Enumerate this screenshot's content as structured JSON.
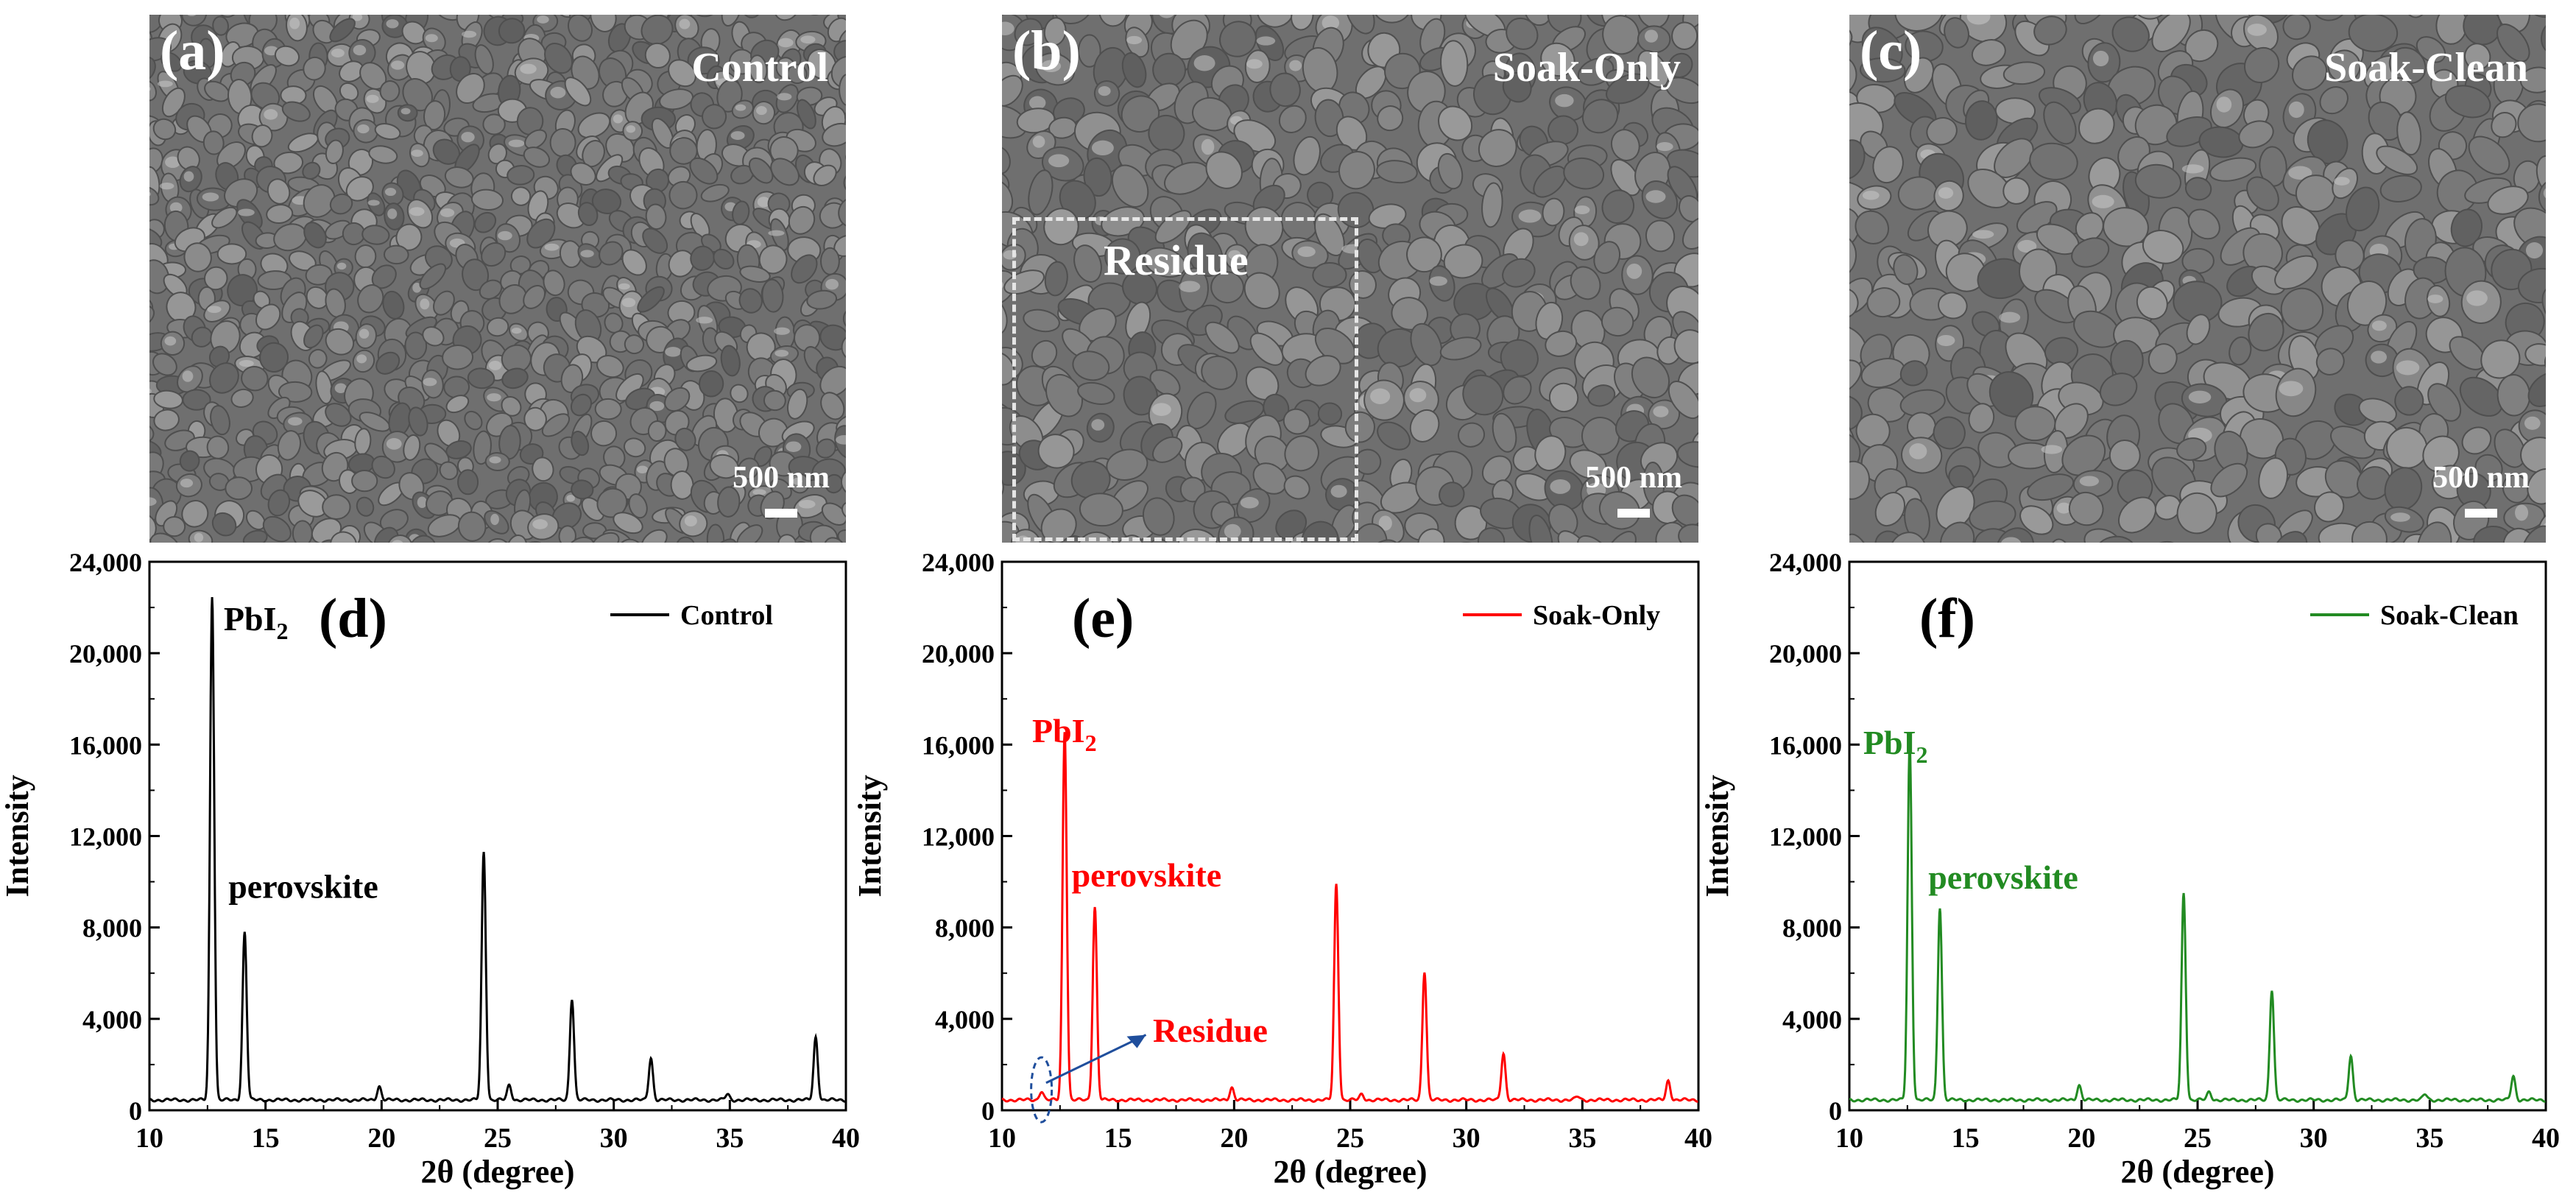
{
  "sem_panels": [
    {
      "label": "(a)",
      "sample": "Control",
      "scale": "500 nm"
    },
    {
      "label": "(b)",
      "sample": "Soak-Only",
      "scale": "500 nm",
      "annotation": "Residue"
    },
    {
      "label": "(c)",
      "sample": "Soak-Clean",
      "scale": "500 nm"
    }
  ],
  "colors": {
    "control": "#000000",
    "soak_only": "#ff0000",
    "soak_clean": "#228b22",
    "residue_marker": "#1f4e9c"
  },
  "chart_data": [
    {
      "type": "line",
      "panel_label": "(d)",
      "xlabel": "2θ (degree)",
      "ylabel": "Intensity",
      "xlim": [
        10,
        40
      ],
      "ylim": [
        0,
        24000
      ],
      "xticks": [
        10,
        15,
        20,
        25,
        30,
        35,
        40
      ],
      "yticks": [
        0,
        4000,
        8000,
        12000,
        16000,
        20000,
        24000
      ],
      "ytick_labels": [
        "0",
        "4,000",
        "8,000",
        "12,000",
        "16,000",
        "20,000",
        "24,000"
      ],
      "legend_position": "top-right",
      "baseline": 450,
      "series": [
        {
          "name": "Control",
          "color": "#000000",
          "peaks": [
            [
              12.7,
              22500
            ],
            [
              14.1,
              7800
            ],
            [
              19.9,
              1050
            ],
            [
              24.4,
              11300
            ],
            [
              25.5,
              1100
            ],
            [
              28.2,
              4900
            ],
            [
              31.6,
              2300
            ],
            [
              34.9,
              700
            ],
            [
              38.7,
              3200
            ]
          ]
        }
      ],
      "annotations": [
        {
          "text": "PbI",
          "sub": "2",
          "x": 13.2,
          "y": 21000
        },
        {
          "text": "perovskite",
          "x": 13.4,
          "y": 9300
        }
      ]
    },
    {
      "type": "line",
      "panel_label": "(e)",
      "xlabel": "2θ (degree)",
      "ylabel": "Intensity",
      "xlim": [
        10,
        40
      ],
      "ylim": [
        0,
        24000
      ],
      "xticks": [
        10,
        15,
        20,
        25,
        30,
        35,
        40
      ],
      "yticks": [
        0,
        4000,
        8000,
        12000,
        16000,
        20000,
        24000
      ],
      "ytick_labels": [
        "0",
        "4,000",
        "8,000",
        "12,000",
        "16,000",
        "20,000",
        "24,000"
      ],
      "legend_position": "top-right",
      "baseline": 450,
      "series": [
        {
          "name": "Soak-Only",
          "color": "#ff0000",
          "peaks": [
            [
              11.7,
              850
            ],
            [
              12.7,
              16600
            ],
            [
              14.0,
              8900
            ],
            [
              19.9,
              1000
            ],
            [
              24.4,
              9900
            ],
            [
              25.5,
              700
            ],
            [
              28.2,
              6100
            ],
            [
              31.6,
              2500
            ],
            [
              34.8,
              600
            ],
            [
              38.7,
              1300
            ]
          ]
        }
      ],
      "annotations": [
        {
          "text": "PbI",
          "sub": "2",
          "x": 11.3,
          "y": 16100
        },
        {
          "text": "perovskite",
          "x": 13.0,
          "y": 9800
        },
        {
          "text": "Residue",
          "x": 16.5,
          "y": 3000
        }
      ]
    },
    {
      "type": "line",
      "panel_label": "(f)",
      "xlabel": "2θ (degree)",
      "ylabel": "Intensity",
      "xlim": [
        10,
        40
      ],
      "ylim": [
        0,
        24000
      ],
      "xticks": [
        10,
        15,
        20,
        25,
        30,
        35,
        40
      ],
      "yticks": [
        0,
        4000,
        8000,
        12000,
        16000,
        20000,
        24000
      ],
      "ytick_labels": [
        "0",
        "4,000",
        "8,000",
        "12,000",
        "16,000",
        "20,000",
        "24,000"
      ],
      "legend_position": "top-right",
      "baseline": 450,
      "series": [
        {
          "name": "Soak-Clean",
          "color": "#228b22",
          "peaks": [
            [
              12.6,
              16100
            ],
            [
              13.9,
              8900
            ],
            [
              19.9,
              1100
            ],
            [
              24.4,
              9500
            ],
            [
              25.5,
              800
            ],
            [
              28.2,
              5300
            ],
            [
              31.6,
              2400
            ],
            [
              34.8,
              700
            ],
            [
              38.6,
              1500
            ]
          ]
        }
      ],
      "annotations": [
        {
          "text": "PbI",
          "sub": "2",
          "x": 10.6,
          "y": 15600
        },
        {
          "text": "perovskite",
          "x": 13.4,
          "y": 9700
        }
      ]
    }
  ]
}
